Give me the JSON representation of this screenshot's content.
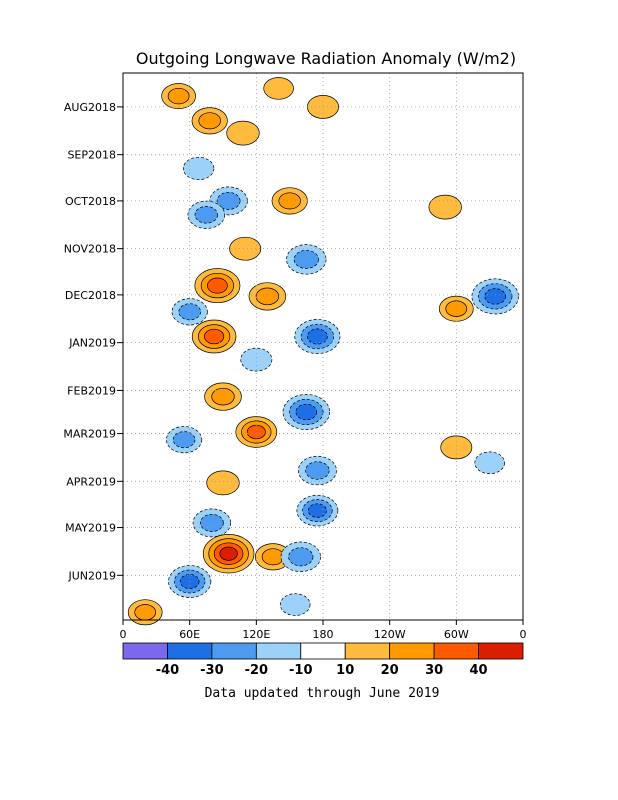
{
  "chart_data": {
    "type": "heatmap",
    "title": "Outgoing Longwave Radiation Anomaly (W/m2)",
    "x_tick_labels": [
      "0",
      "60E",
      "120E",
      "180",
      "120W",
      "60W",
      "0"
    ],
    "x_tick_values_deg": [
      0,
      60,
      120,
      180,
      240,
      300,
      360
    ],
    "xlim_deg": [
      0,
      360
    ],
    "y_tick_labels": [
      "AUG2018",
      "SEP2018",
      "OCT2018",
      "NOV2018",
      "DEC2018",
      "JAN2019",
      "FEB2019",
      "MAR2019",
      "APR2019",
      "MAY2019",
      "JUN2019"
    ],
    "y_tick_dates": [
      "2018-08-01",
      "2018-09-01",
      "2018-10-01",
      "2018-11-01",
      "2018-12-01",
      "2019-01-01",
      "2019-02-01",
      "2019-03-01",
      "2019-04-01",
      "2019-05-01",
      "2019-06-01"
    ],
    "ylim_dates": [
      "2018-07-10",
      "2019-06-30"
    ],
    "y_direction": "time increases downward",
    "grid": "dotted",
    "colorbar": {
      "placement": "bottom",
      "tick_labels": [
        "-40",
        "-30",
        "-20",
        "-10",
        "10",
        "20",
        "30",
        "40"
      ],
      "bins": [
        {
          "range": [
            -50,
            -40
          ],
          "color": "#7b68ee"
        },
        {
          "range": [
            -40,
            -30
          ],
          "color": "#1e6ee6"
        },
        {
          "range": [
            -30,
            -20
          ],
          "color": "#4d9bf0"
        },
        {
          "range": [
            -20,
            -10
          ],
          "color": "#9cd2fa"
        },
        {
          "range": [
            -10,
            10
          ],
          "color": "#ffffff"
        },
        {
          "range": [
            10,
            20
          ],
          "color": "#ffbb3e"
        },
        {
          "range": [
            20,
            30
          ],
          "color": "#ff9a00"
        },
        {
          "range": [
            30,
            40
          ],
          "color": "#ff5a00"
        },
        {
          "range": [
            40,
            50
          ],
          "color": "#dc1e00"
        }
      ]
    },
    "anomalies": [
      {
        "lon": 50,
        "date": "2018-07-25",
        "value": 20
      },
      {
        "lon": 78,
        "date": "2018-08-10",
        "value": 22
      },
      {
        "lon": 108,
        "date": "2018-08-18",
        "value": 18
      },
      {
        "lon": 140,
        "date": "2018-07-20",
        "value": 14
      },
      {
        "lon": 180,
        "date": "2018-08-01",
        "value": 16
      },
      {
        "lon": 68,
        "date": "2018-09-10",
        "value": -15
      },
      {
        "lon": 95,
        "date": "2018-10-01",
        "value": -25
      },
      {
        "lon": 150,
        "date": "2018-10-01",
        "value": 22
      },
      {
        "lon": 75,
        "date": "2018-10-10",
        "value": -24
      },
      {
        "lon": 165,
        "date": "2018-11-08",
        "value": -28
      },
      {
        "lon": 110,
        "date": "2018-11-01",
        "value": 16
      },
      {
        "lon": 85,
        "date": "2018-11-25",
        "value": 36
      },
      {
        "lon": 130,
        "date": "2018-12-02",
        "value": 24
      },
      {
        "lon": 60,
        "date": "2018-12-12",
        "value": -22
      },
      {
        "lon": 335,
        "date": "2018-12-02",
        "value": -38
      },
      {
        "lon": 300,
        "date": "2018-12-10",
        "value": 20
      },
      {
        "lon": 82,
        "date": "2018-12-28",
        "value": 34
      },
      {
        "lon": 175,
        "date": "2018-12-28",
        "value": -36
      },
      {
        "lon": 120,
        "date": "2019-01-12",
        "value": -16
      },
      {
        "lon": 90,
        "date": "2019-02-05",
        "value": 24
      },
      {
        "lon": 165,
        "date": "2019-02-15",
        "value": -38
      },
      {
        "lon": 120,
        "date": "2019-02-28",
        "value": 30
      },
      {
        "lon": 55,
        "date": "2019-03-05",
        "value": -22
      },
      {
        "lon": 175,
        "date": "2019-03-25",
        "value": -26
      },
      {
        "lon": 90,
        "date": "2019-04-02",
        "value": 18
      },
      {
        "lon": 175,
        "date": "2019-04-20",
        "value": -30
      },
      {
        "lon": 80,
        "date": "2019-04-28",
        "value": -25
      },
      {
        "lon": 95,
        "date": "2019-05-18",
        "value": 44
      },
      {
        "lon": 135,
        "date": "2019-05-20",
        "value": 22
      },
      {
        "lon": 160,
        "date": "2019-05-20",
        "value": -28
      },
      {
        "lon": 60,
        "date": "2019-06-05",
        "value": -32
      },
      {
        "lon": 20,
        "date": "2019-06-25",
        "value": 20
      },
      {
        "lon": 155,
        "date": "2019-06-20",
        "value": -14
      },
      {
        "lon": 300,
        "date": "2019-03-10",
        "value": 16
      },
      {
        "lon": 330,
        "date": "2019-03-20",
        "value": -14
      },
      {
        "lon": 290,
        "date": "2018-10-05",
        "value": 18
      }
    ]
  },
  "footer": {
    "note": "Data updated through June 2019"
  }
}
